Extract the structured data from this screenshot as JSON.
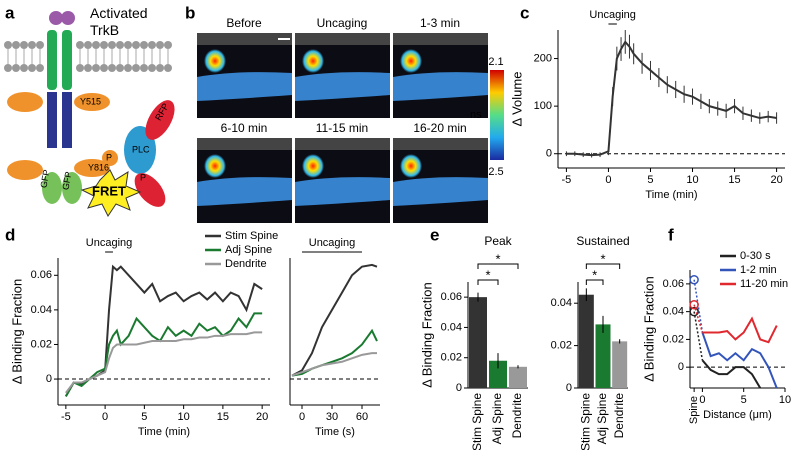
{
  "panel_labels": [
    "a",
    "b",
    "c",
    "d",
    "e",
    "f"
  ],
  "diagram": {
    "title": "Activated\nTrkB",
    "labels": [
      "Y515",
      "Y816",
      "P",
      "PLC",
      "P",
      "RFP",
      "GFP",
      "GFP",
      "FRET"
    ]
  },
  "images": {
    "titles": [
      "Before",
      "Uncaging",
      "1-3 min",
      "6-10 min",
      "11-15 min",
      "16-20 min"
    ],
    "colorbar": {
      "top": 2.1,
      "bottom": 2.5,
      "unit": "ns"
    }
  },
  "chart_data": [
    {
      "type": "line",
      "xlabel": "Time (min)",
      "ylabel": "Δ Volume",
      "annotation": "Uncaging",
      "annotation_span": [
        0,
        1
      ],
      "xlim": [
        -6,
        21
      ],
      "xticks": [
        -5,
        0,
        5,
        10,
        15,
        20
      ],
      "ylim": [
        -30,
        260
      ],
      "yticks": [
        0,
        100,
        200
      ],
      "zero_line": true,
      "x": [
        -5,
        -4,
        -3,
        -2,
        -1,
        0,
        0.5,
        1,
        1.5,
        2,
        2.5,
        3,
        4,
        5,
        6,
        7,
        8,
        9,
        10,
        11,
        12,
        13,
        14,
        15,
        16,
        17,
        18,
        19,
        20
      ],
      "series": [
        {
          "name": "Volume",
          "color": "#333333",
          "values": [
            0,
            0,
            -2,
            -3,
            -2,
            5,
            120,
            200,
            220,
            235,
            225,
            210,
            190,
            175,
            160,
            145,
            135,
            125,
            120,
            110,
            100,
            95,
            90,
            100,
            85,
            80,
            75,
            78,
            75
          ],
          "errors": [
            5,
            5,
            5,
            5,
            5,
            8,
            20,
            25,
            25,
            25,
            25,
            22,
            22,
            20,
            20,
            18,
            18,
            18,
            17,
            16,
            15,
            15,
            15,
            15,
            14,
            13,
            12,
            12,
            12
          ]
        }
      ]
    },
    {
      "type": "line",
      "xlabel": "Time (min)",
      "ylabel": "Δ Binding Fraction",
      "annotation": "Uncaging",
      "annotation_span": [
        0,
        1
      ],
      "xlim": [
        -6,
        21
      ],
      "xticks": [
        -5,
        0,
        5,
        10,
        15,
        20
      ],
      "ylim": [
        -0.015,
        0.07
      ],
      "yticks": [
        0,
        0.02,
        0.04,
        0.06
      ],
      "zero_line": true,
      "legend": true,
      "x": [
        -5,
        -4,
        -3,
        -2,
        -1,
        0,
        0.5,
        1,
        1.5,
        2,
        3,
        4,
        5,
        6,
        7,
        8,
        9,
        10,
        11,
        12,
        13,
        14,
        15,
        16,
        17,
        18,
        19,
        20
      ],
      "series": [
        {
          "name": "Stim Spine",
          "color": "#333333",
          "values": [
            -0.01,
            -0.002,
            -0.003,
            0,
            0.002,
            0.005,
            0.04,
            0.065,
            0.063,
            0.065,
            0.06,
            0.055,
            0.05,
            0.055,
            0.045,
            0.048,
            0.05,
            0.045,
            0.048,
            0.05,
            0.046,
            0.05,
            0.045,
            0.05,
            0.048,
            0.04,
            0.055,
            0.052
          ]
        },
        {
          "name": "Adj Spine",
          "color": "#1a7a30",
          "values": [
            -0.01,
            -0.002,
            -0.004,
            0,
            0.004,
            0.006,
            0.02,
            0.025,
            0.028,
            0.02,
            0.025,
            0.035,
            0.03,
            0.025,
            0.022,
            0.03,
            0.025,
            0.028,
            0.025,
            0.032,
            0.028,
            0.03,
            0.025,
            0.028,
            0.035,
            0.03,
            0.038,
            0.038
          ]
        },
        {
          "name": "Dendrite",
          "color": "#999999",
          "values": [
            -0.008,
            -0.002,
            -0.002,
            0,
            0.002,
            0.004,
            0.012,
            0.018,
            0.02,
            0.02,
            0.02,
            0.02,
            0.021,
            0.022,
            0.022,
            0.022,
            0.022,
            0.023,
            0.023,
            0.024,
            0.024,
            0.025,
            0.025,
            0.026,
            0.026,
            0.026,
            0.027,
            0.027
          ]
        }
      ]
    },
    {
      "type": "line",
      "xlabel": "Time (s)",
      "annotation": "Uncaging",
      "annotation_span": [
        0,
        60
      ],
      "xlim": [
        -12,
        78
      ],
      "xticks": [
        0,
        30,
        60
      ],
      "ylim": [
        -0.015,
        0.07
      ],
      "zero_line": true,
      "x": [
        -10,
        0,
        10,
        20,
        30,
        40,
        50,
        60,
        70,
        75
      ],
      "series": [
        {
          "name": "Stim Spine",
          "color": "#333333",
          "values": [
            0.002,
            0.005,
            0.015,
            0.03,
            0.04,
            0.05,
            0.06,
            0.065,
            0.066,
            0.065
          ]
        },
        {
          "name": "Adj Spine",
          "color": "#1a7a30",
          "values": [
            0.002,
            0.003,
            0.006,
            0.008,
            0.01,
            0.012,
            0.015,
            0.02,
            0.028,
            0.022
          ]
        },
        {
          "name": "Dendrite",
          "color": "#999999",
          "values": [
            0.002,
            0.004,
            0.006,
            0.008,
            0.009,
            0.01,
            0.012,
            0.014,
            0.015,
            0.015
          ]
        }
      ]
    },
    {
      "type": "bar",
      "title": "Peak",
      "ylabel": "Δ Binding Fraction",
      "categories": [
        "Stim Spine",
        "Adj Spine",
        "Dendrite"
      ],
      "values": [
        0.06,
        0.018,
        0.014
      ],
      "errors": [
        0.003,
        0.005,
        0.001
      ],
      "colors": [
        "#333333",
        "#1a7a30",
        "#999999"
      ],
      "ylim": [
        0,
        0.07
      ],
      "yticks": [
        0,
        0.02,
        0.04,
        0.06
      ],
      "significance_labels": [
        "*",
        "*"
      ]
    },
    {
      "type": "bar",
      "title": "Sustained",
      "categories": [
        "Stim Spine",
        "Adj Spine",
        "Dendrite"
      ],
      "values": [
        0.044,
        0.03,
        0.022
      ],
      "errors": [
        0.003,
        0.004,
        0.001
      ],
      "colors": [
        "#333333",
        "#1a7a30",
        "#999999"
      ],
      "ylim": [
        0,
        0.05
      ],
      "yticks": [
        0,
        0.02,
        0.04
      ],
      "significance_labels": [
        "*",
        "*"
      ]
    },
    {
      "type": "line",
      "xlabel": "Distance (μm)",
      "ylabel": "Δ Binding Fraction",
      "xlim": [
        -1.5,
        10
      ],
      "xticks": [
        {
          "value": -1,
          "label": "Spine"
        },
        0,
        5,
        10
      ],
      "ylim": [
        -0.015,
        0.07
      ],
      "yticks": [
        0,
        0.02,
        0.04,
        0.06
      ],
      "zero_line": true,
      "legend": true,
      "x": [
        0,
        1,
        2,
        3,
        4,
        5,
        6,
        7,
        8,
        9
      ],
      "series": [
        {
          "name": "0-30 s",
          "color": "#222222",
          "spine_value": 0.04,
          "values": [
            0.005,
            -0.002,
            -0.005,
            -0.005,
            0,
            0,
            -0.005,
            -0.015,
            null,
            null
          ]
        },
        {
          "name": "1-2 min",
          "color": "#3355bb",
          "spine_value": 0.063,
          "values": [
            0.025,
            0.008,
            0.01,
            0.005,
            0.01,
            0.005,
            0.013,
            0.01,
            0,
            -0.015
          ]
        },
        {
          "name": "11-20 min",
          "color": "#e0282e",
          "spine_value": 0.045,
          "values": [
            0.025,
            0.025,
            0.025,
            0.026,
            0.02,
            0.025,
            0.035,
            0.02,
            0.018,
            0.03
          ]
        }
      ]
    }
  ]
}
